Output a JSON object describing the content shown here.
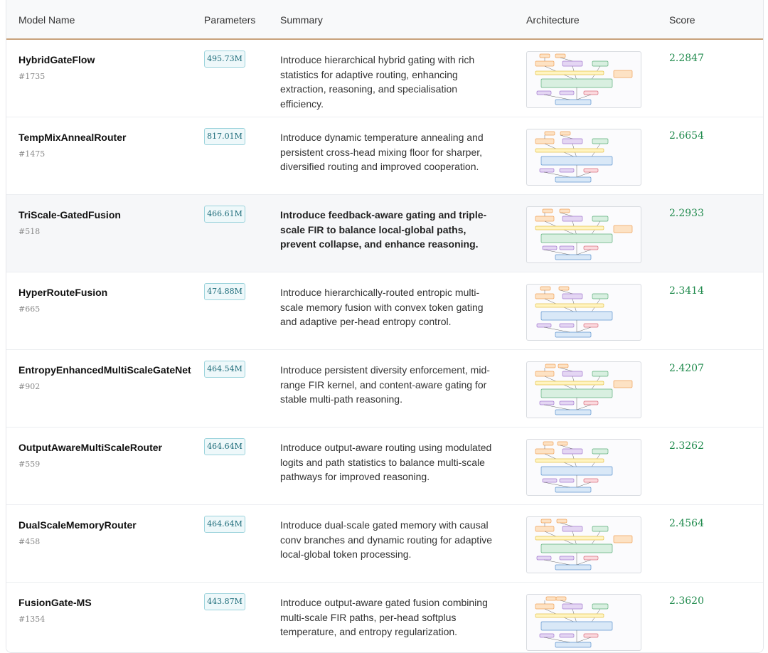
{
  "table": {
    "headers": {
      "model_name": "Model Name",
      "parameters": "Parameters",
      "summary": "Summary",
      "architecture": "Architecture",
      "score": "Score"
    },
    "rows": [
      {
        "name": "HybridGateFlow",
        "id": "#1735",
        "params": "495.73M",
        "summary": "Introduce hierarchical hybrid gating with rich statistics for adaptive routing, enhancing extraction, reasoning, and specialisation efficiency.",
        "score": "2.2847"
      },
      {
        "name": "TempMixAnnealRouter",
        "id": "#1475",
        "params": "817.01M",
        "summary": "Introduce dynamic temperature annealing and persistent cross-head mixing floor for sharper, diversified routing and improved cooperation.",
        "score": "2.6654"
      },
      {
        "name": "TriScale-GatedFusion",
        "id": "#518",
        "params": "466.61M",
        "summary": "Introduce feedback-aware gating and triple-scale FIR to balance local-global paths, prevent collapse, and enhance reasoning.",
        "score": "2.2933"
      },
      {
        "name": "HyperRouteFusion",
        "id": "#665",
        "params": "474.88M",
        "summary": "Introduce hierarchically-routed entropic multi-scale memory fusion with convex token gating and adaptive per-head entropy control.",
        "score": "2.3414"
      },
      {
        "name": "EntropyEnhancedMultiScaleGateNet",
        "id": "#902",
        "params": "464.54M",
        "summary": "Introduce persistent diversity enforcement, mid-range FIR kernel, and content-aware gating for stable multi-path reasoning.",
        "score": "2.4207"
      },
      {
        "name": "OutputAwareMultiScaleRouter",
        "id": "#559",
        "params": "464.64M",
        "summary": "Introduce output-aware routing using modulated logits and path statistics to balance multi-scale pathways for improved reasoning.",
        "score": "2.3262"
      },
      {
        "name": "DualScaleMemoryRouter",
        "id": "#458",
        "params": "464.64M",
        "summary": "Introduce dual-scale gated memory with causal conv branches and dynamic routing for adaptive local-global token processing.",
        "score": "2.4564"
      },
      {
        "name": "FusionGate-MS",
        "id": "#1354",
        "params": "443.87M",
        "summary": "Introduce output-aware gated fusion combining multi-scale FIR paths, per-head softplus temperature, and entropy regularization.",
        "score": "2.3620"
      }
    ]
  }
}
